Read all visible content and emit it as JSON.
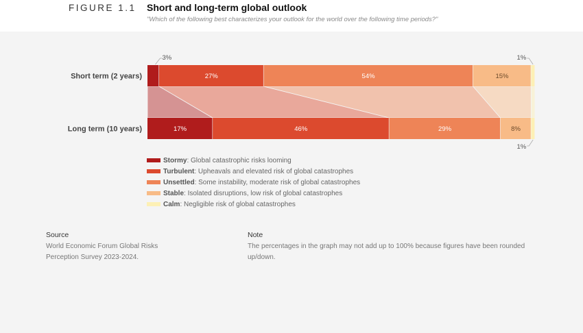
{
  "header": {
    "figure_label": "FIGURE 1.1",
    "title": "Short and long-term global outlook",
    "subtitle": "\"Which of the following best characterizes your outlook for the world over the following time periods?\""
  },
  "chart_data": {
    "type": "bar",
    "orientation": "horizontal",
    "stacked": true,
    "title": "Short and long-term global outlook",
    "subtitle": "\"Which of the following best characterizes your outlook for the world over the following time periods?\"",
    "categories": [
      "Short term (2 years)",
      "Long term (10 years)"
    ],
    "series": [
      {
        "name": "Stormy",
        "description": "Global catastrophic risks looming",
        "color": "#b01c1c",
        "values": [
          3,
          17
        ],
        "labels": [
          "3%",
          "17%"
        ]
      },
      {
        "name": "Turbulent",
        "description": "Upheavals and elevated risk of global catastrophes",
        "color": "#dc4a2e",
        "values": [
          27,
          46
        ],
        "labels": [
          "27%",
          "46%"
        ]
      },
      {
        "name": "Unsettled",
        "description": "Some instability, moderate risk of global catastrophes",
        "color": "#ee8457",
        "values": [
          54,
          29
        ],
        "labels": [
          "54%",
          "29%"
        ]
      },
      {
        "name": "Stable",
        "description": "Isolated disruptions, low risk of global catastrophes",
        "color": "#f8bb87",
        "values": [
          15,
          8
        ],
        "labels": [
          "15%",
          "8%"
        ]
      },
      {
        "name": "Calm",
        "description": "Negligible risk of global catastrophes",
        "color": "#fdf0b5",
        "values": [
          1,
          1
        ],
        "labels": [
          "1%",
          "1%"
        ]
      }
    ],
    "xlim": [
      0,
      100
    ],
    "legend": "bottom-left"
  },
  "footer": {
    "source_title": "Source",
    "source_text": "World Economic Forum Global Risks\nPerception Survey 2023-2024.",
    "note_title": "Note",
    "note_text": "The percentages in the graph may not add up to 100% because figures have been rounded\nup/down."
  }
}
